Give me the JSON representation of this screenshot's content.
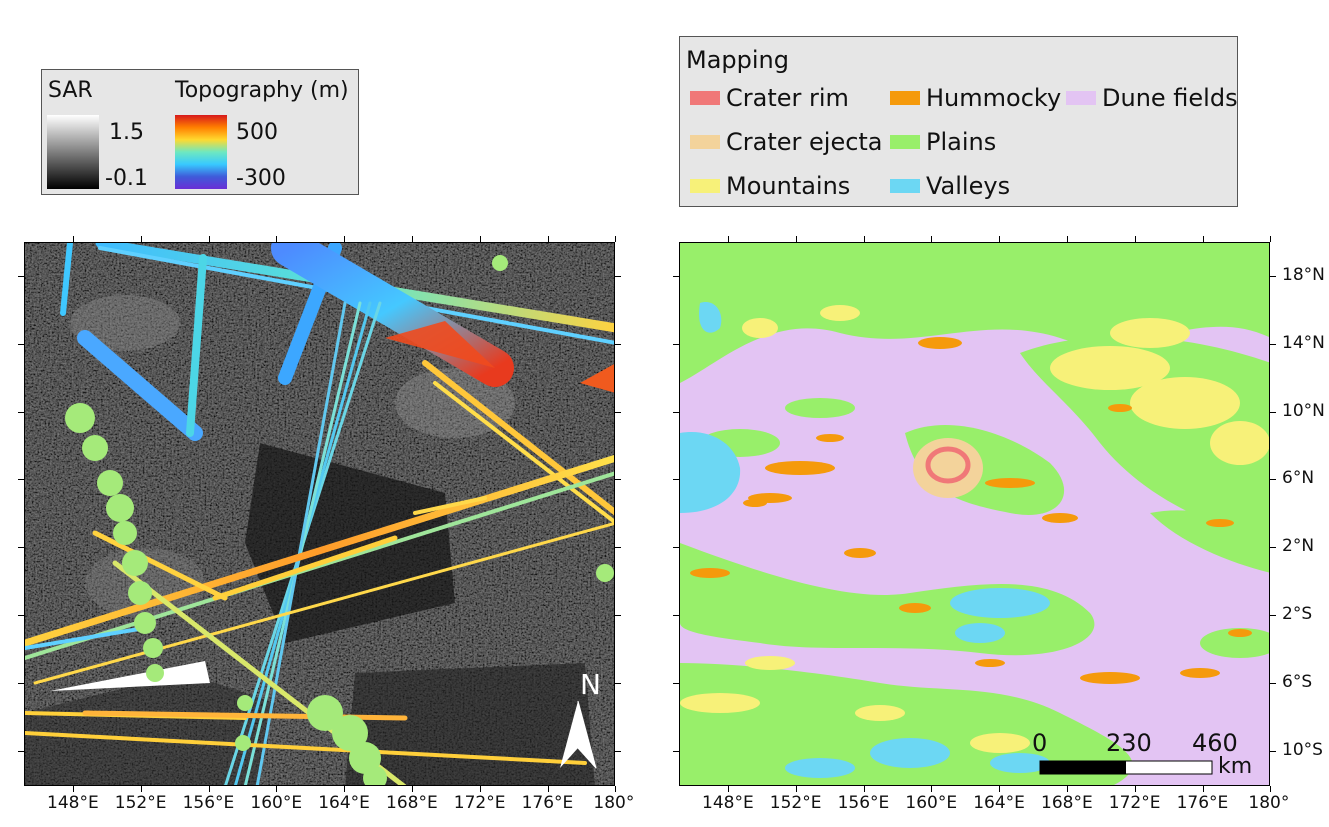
{
  "legend_left": {
    "sar_title": "SAR",
    "sar_max": "1.5",
    "sar_min": "-0.1",
    "topo_title": "Topography (m)",
    "topo_max": "500",
    "topo_min": "-300"
  },
  "legend_right": {
    "title": "Mapping",
    "items": [
      {
        "label": "Crater rim",
        "color": "#f07878"
      },
      {
        "label": "Hummocky",
        "color": "#f59a0c"
      },
      {
        "label": "Dune fields",
        "color": "#e3c4f3"
      },
      {
        "label": "Crater ejecta",
        "color": "#f3d39b"
      },
      {
        "label": "Plains",
        "color": "#98ef6a"
      },
      {
        "label": "Mountains",
        "color": "#f7f179"
      },
      {
        "label": "Valleys",
        "color": "#6cd7f3"
      }
    ]
  },
  "axes": {
    "x_labels": [
      "148°E",
      "152°E",
      "156°E",
      "160°E",
      "164°E",
      "168°E",
      "172°E",
      "176°E",
      "180°"
    ],
    "y_labels": [
      "18°N",
      "14°N",
      "10°N",
      "6°N",
      "2°N",
      "2°S",
      "6°S",
      "10°S"
    ]
  },
  "north_arrow": {
    "label": "N"
  },
  "scale_bar": {
    "t0": "0",
    "t1": "230",
    "t2": "460",
    "unit": "km"
  }
}
